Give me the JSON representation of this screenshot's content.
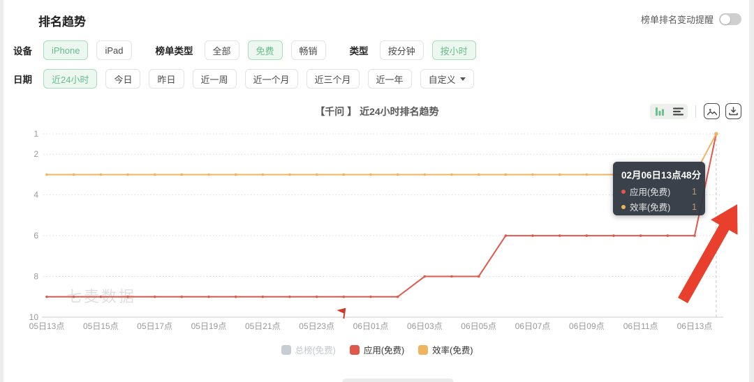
{
  "page": {
    "title": "排名趋势"
  },
  "header": {
    "alert_label": "榜单排名变动提醒",
    "alert_on": false
  },
  "filters": {
    "device": {
      "label": "设备",
      "options": [
        {
          "label": "iPhone",
          "selected": true
        },
        {
          "label": "iPad",
          "selected": false
        }
      ]
    },
    "list_type": {
      "label": "榜单类型",
      "options": [
        {
          "label": "全部",
          "selected": false
        },
        {
          "label": "免费",
          "selected": true
        },
        {
          "label": "畅销",
          "selected": false
        }
      ]
    },
    "granularity": {
      "label": "类型",
      "options": [
        {
          "label": "按分钟",
          "selected": false
        },
        {
          "label": "按小时",
          "selected": true
        }
      ]
    },
    "date": {
      "label": "日期",
      "options": [
        {
          "label": "近24小时",
          "selected": true
        },
        {
          "label": "今日",
          "selected": false
        },
        {
          "label": "昨日",
          "selected": false
        },
        {
          "label": "近一周",
          "selected": false
        },
        {
          "label": "近一个月",
          "selected": false
        },
        {
          "label": "近三个月",
          "selected": false
        },
        {
          "label": "近一年",
          "selected": false
        },
        {
          "label": "自定义",
          "selected": false,
          "dropdown": true
        }
      ]
    }
  },
  "chart": {
    "title": "【千问 】 近24小时排名趋势",
    "toolbar_icons": [
      "bar-chart",
      "list",
      "image",
      "download"
    ],
    "watermark": "七麦数据"
  },
  "tooltip": {
    "title": "02月06日13点48分",
    "rows": [
      {
        "name": "应用(免费)",
        "value": "1",
        "color": "#e0584a"
      },
      {
        "name": "效率(免费)",
        "value": "1",
        "color": "#f0b45f"
      }
    ]
  },
  "legend": [
    {
      "label": "总榜(免费)",
      "color": "#c8cdd3",
      "disabled": true
    },
    {
      "label": "应用(免费)",
      "color": "#e0584a",
      "disabled": false
    },
    {
      "label": "效率(免费)",
      "color": "#f0b45f",
      "disabled": false
    }
  ],
  "chart_data": {
    "type": "line",
    "title": "【千问 】 近24小时排名趋势",
    "y_inverted": true,
    "ylim": [
      1,
      10
    ],
    "y_ticks": [
      1,
      2,
      4,
      6,
      8,
      10
    ],
    "x_tick_hours": [
      0,
      2,
      4,
      6,
      8,
      10,
      12,
      14,
      16,
      18,
      20,
      22,
      24
    ],
    "x_tick_labels": [
      "05日13点",
      "05日15点",
      "05日17点",
      "05日19点",
      "05日21点",
      "05日23点",
      "06日01点",
      "06日03点",
      "06日05点",
      "06日07点",
      "06日09点",
      "06日11点",
      "06日13点"
    ],
    "x_hours": [
      0,
      1,
      2,
      3,
      4,
      5,
      6,
      7,
      8,
      9,
      10,
      11,
      12,
      13,
      14,
      15,
      16,
      17,
      18,
      19,
      20,
      21,
      22,
      23,
      24,
      24.8
    ],
    "series": [
      {
        "name": "应用(免费)",
        "color": "#e0584a",
        "values": [
          9,
          9,
          9,
          9,
          9,
          9,
          9,
          9,
          9,
          9,
          9,
          9,
          9,
          9,
          8,
          8,
          8,
          6,
          6,
          6,
          6,
          6,
          6,
          6,
          6,
          1
        ]
      },
      {
        "name": "效率(免费)",
        "color": "#f0b45f",
        "values": [
          3,
          3,
          3,
          3,
          3,
          3,
          3,
          3,
          3,
          3,
          3,
          3,
          3,
          3,
          3,
          3,
          3,
          3,
          3,
          3,
          3,
          3,
          3,
          3,
          3,
          1
        ]
      }
    ],
    "hidden_series": [
      "总榜(免费)"
    ],
    "flag_marker_hour": 11,
    "hover_hour": 24.8,
    "grid": true,
    "legend_position": "bottom"
  }
}
